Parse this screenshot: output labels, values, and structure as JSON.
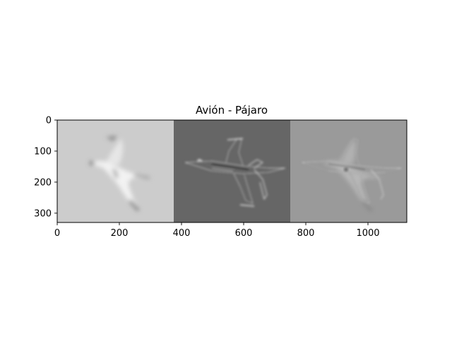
{
  "chart_data": {
    "type": "image",
    "title": "Avión - Pájaro",
    "xlim": [
      0,
      1125
    ],
    "ylim": [
      330,
      0
    ],
    "xticks": [
      0,
      200,
      400,
      600,
      800,
      1000
    ],
    "yticks": [
      0,
      100,
      200,
      300
    ],
    "grid": false,
    "panels": [
      {
        "name": "low-pass-bird",
        "x_range": [
          0,
          375
        ],
        "background": "#cccccc"
      },
      {
        "name": "high-pass-airplane",
        "x_range": [
          375,
          750
        ],
        "background": "#666666"
      },
      {
        "name": "hybrid",
        "x_range": [
          750,
          1125
        ],
        "background": "#9a9a9a"
      }
    ]
  }
}
